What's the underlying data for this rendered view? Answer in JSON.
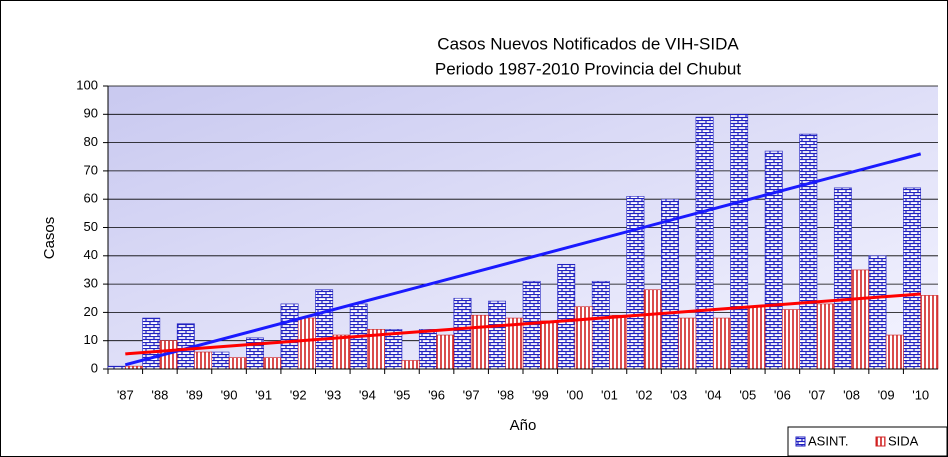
{
  "chart_data": {
    "type": "bar",
    "title": "Casos Nuevos Notificados de VIH-SIDA",
    "subtitle": "Periodo 1987-2010  Provincia del Chubut",
    "x_label": "Año",
    "y_label": "Casos",
    "categories": [
      "'87",
      "'88",
      "'89",
      "'90",
      "'91",
      "'92",
      "'93",
      "'94",
      "'95",
      "'96",
      "'97",
      "'98",
      "'99",
      "'00",
      "'01",
      "'02",
      "'03",
      "'04",
      "'05",
      "'06",
      "'07",
      "'08",
      "'09",
      "'10"
    ],
    "series": [
      {
        "name": "ASINT.",
        "color": "#2020c0",
        "trend_color": "#1a1aff",
        "values": [
          1,
          18,
          16,
          6,
          11,
          23,
          28,
          23,
          14,
          14,
          25,
          24,
          31,
          37,
          31,
          61,
          60,
          89,
          90,
          77,
          83,
          64,
          40,
          64
        ]
      },
      {
        "name": "SIDA",
        "color": "#d02020",
        "trend_color": "#ff0000",
        "values": [
          1,
          10,
          6,
          4,
          4,
          18,
          12,
          14,
          3,
          12,
          19,
          18,
          17,
          22,
          19,
          28,
          18,
          18,
          22,
          21,
          23,
          35,
          12,
          26
        ]
      }
    ],
    "ylim": [
      0,
      100
    ],
    "yticks": [
      0,
      10,
      20,
      30,
      40,
      50,
      60,
      70,
      80,
      90,
      100
    ],
    "grid": true,
    "legend": "bottom-right",
    "trendlines": true
  }
}
